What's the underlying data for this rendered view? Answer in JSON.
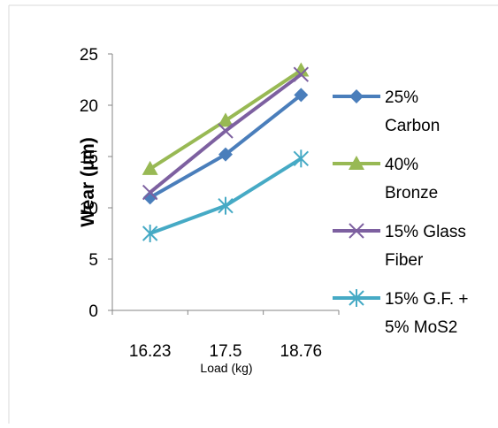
{
  "chart_data": {
    "type": "line",
    "title": "",
    "xlabel": "Load (kg)",
    "ylabel": "Wear (µm)",
    "categories": [
      "16.23",
      "17.5",
      "18.76"
    ],
    "ylim": [
      0,
      25
    ],
    "yticks": [
      "0",
      "5",
      "10",
      "15",
      "20",
      "25"
    ],
    "grid": false,
    "legend_position": "right",
    "series": [
      {
        "name": "25% Carbon",
        "legend_lines": [
          "25%",
          "Carbon"
        ],
        "values": [
          11,
          15.2,
          21
        ],
        "color": "#4a7ebb",
        "marker": "diamond"
      },
      {
        "name": "40% Bronze",
        "legend_lines": [
          "40%",
          "Bronze"
        ],
        "values": [
          13.8,
          18.5,
          23.4
        ],
        "color": "#98b954",
        "marker": "triangle"
      },
      {
        "name": "15% Glass Fiber",
        "legend_lines": [
          "15% Glass",
          "Fiber"
        ],
        "values": [
          11.5,
          17.5,
          23
        ],
        "color": "#7d60a0",
        "marker": "x"
      },
      {
        "name": "15% G.F. + 5% MoS2",
        "legend_lines": [
          "15% G.F. +",
          "5% MoS2"
        ],
        "values": [
          7.5,
          10.2,
          14.8
        ],
        "color": "#46aac5",
        "marker": "star"
      }
    ]
  }
}
